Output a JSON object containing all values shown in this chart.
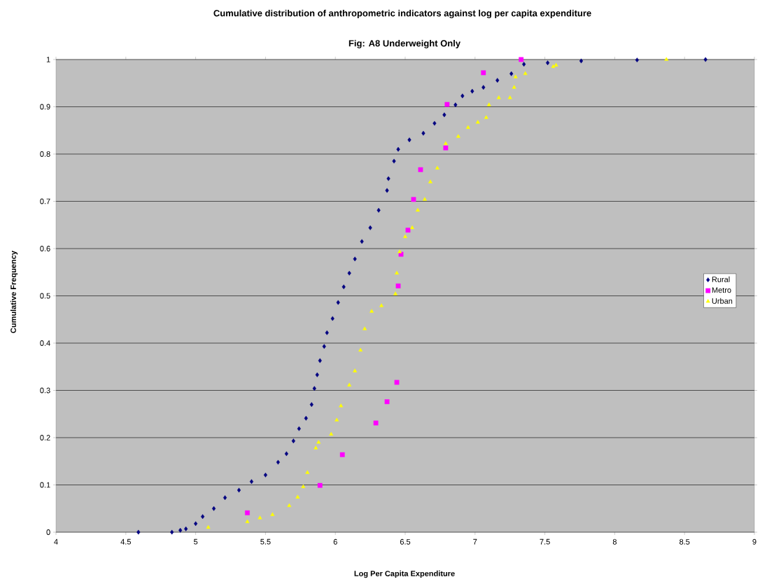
{
  "chart_data": {
    "type": "scatter",
    "title": "Cumulative distribution of anthropometric indicators against log per capita expenditure",
    "subtitle": "Fig: A8 Underweight Only",
    "xlabel": "Log Per Capita Expenditure",
    "ylabel": "Cumulative Frequency",
    "xlim": [
      4,
      9
    ],
    "ylim": [
      0,
      1
    ],
    "xticks": [
      4,
      4.5,
      5,
      5.5,
      6,
      6.5,
      7,
      7.5,
      8,
      8.5,
      9
    ],
    "yticks": [
      0,
      0.1,
      0.2,
      0.3,
      0.4,
      0.5,
      0.6,
      0.7,
      0.8,
      0.9,
      1
    ],
    "grid": "y",
    "legend": "right",
    "series": [
      {
        "name": "Rural",
        "color": "#000080",
        "marker": "diamond",
        "x": [
          4.59,
          4.83,
          4.89,
          4.93,
          5.0,
          5.05,
          5.13,
          5.21,
          5.31,
          5.4,
          5.5,
          5.59,
          5.65,
          5.7,
          5.74,
          5.79,
          5.83,
          5.85,
          5.87,
          5.89,
          5.92,
          5.94,
          5.98,
          6.02,
          6.06,
          6.1,
          6.14,
          6.19,
          6.25,
          6.31,
          6.37,
          6.38,
          6.42,
          6.45,
          6.53,
          6.63,
          6.71,
          6.78,
          6.86,
          6.91,
          6.98,
          7.06,
          7.16,
          7.26,
          7.35,
          7.52,
          7.76,
          8.16,
          8.65
        ],
        "values": [
          0.0,
          0.0,
          0.004,
          0.007,
          0.018,
          0.033,
          0.05,
          0.073,
          0.089,
          0.107,
          0.121,
          0.148,
          0.166,
          0.193,
          0.219,
          0.241,
          0.27,
          0.304,
          0.333,
          0.363,
          0.393,
          0.422,
          0.452,
          0.486,
          0.519,
          0.548,
          0.578,
          0.615,
          0.644,
          0.681,
          0.723,
          0.748,
          0.785,
          0.81,
          0.83,
          0.844,
          0.865,
          0.883,
          0.904,
          0.923,
          0.933,
          0.941,
          0.956,
          0.97,
          0.99,
          0.993,
          0.997,
          0.999,
          1.0
        ]
      },
      {
        "name": "Metro",
        "color": "#ff00ff",
        "marker": "square",
        "x": [
          5.37,
          5.89,
          6.05,
          6.29,
          6.37,
          6.44,
          6.45,
          6.47,
          6.52,
          6.56,
          6.61,
          6.79,
          6.8,
          7.06,
          7.33
        ],
        "values": [
          0.041,
          0.099,
          0.164,
          0.231,
          0.276,
          0.317,
          0.521,
          0.588,
          0.639,
          0.704,
          0.767,
          0.813,
          0.905,
          0.972,
          1.0
        ]
      },
      {
        "name": "Urban",
        "color": "#ffff00",
        "marker": "triangle",
        "x": [
          5.09,
          5.37,
          5.46,
          5.55,
          5.67,
          5.73,
          5.77,
          5.8,
          5.86,
          5.88,
          5.97,
          6.01,
          6.04,
          6.1,
          6.14,
          6.18,
          6.21,
          6.26,
          6.33,
          6.43,
          6.44,
          6.46,
          6.5,
          6.55,
          6.59,
          6.64,
          6.68,
          6.73,
          6.79,
          6.88,
          6.95,
          7.02,
          7.08,
          7.1,
          7.17,
          7.25,
          7.28,
          7.29,
          7.36,
          7.56,
          7.58,
          8.37
        ],
        "values": [
          0.01,
          0.022,
          0.03,
          0.037,
          0.056,
          0.074,
          0.096,
          0.126,
          0.178,
          0.19,
          0.207,
          0.237,
          0.267,
          0.311,
          0.341,
          0.385,
          0.43,
          0.467,
          0.479,
          0.504,
          0.548,
          0.593,
          0.625,
          0.644,
          0.681,
          0.704,
          0.741,
          0.77,
          0.822,
          0.837,
          0.856,
          0.867,
          0.877,
          0.904,
          0.919,
          0.919,
          0.941,
          0.963,
          0.97,
          0.985,
          0.988,
          1.0
        ]
      }
    ]
  }
}
